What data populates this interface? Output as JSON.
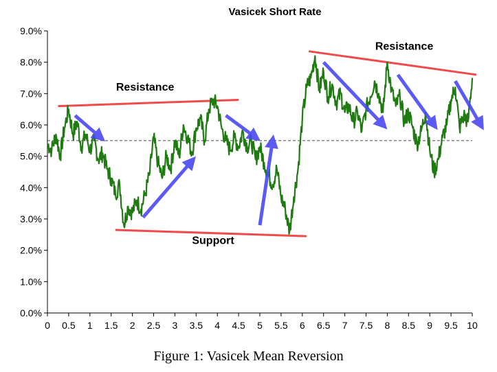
{
  "caption": "Figure 1: Vasicek Mean Reversion",
  "chart_data": {
    "type": "line",
    "title": "Vasicek Short Rate",
    "xlabel": "",
    "ylabel": "",
    "xlim": [
      0,
      10
    ],
    "ylim": [
      0.0,
      9.0
    ],
    "x_ticks": [
      "0",
      "0.5",
      "1",
      "1.5",
      "2",
      "2.5",
      "3",
      "3.5",
      "4",
      "4.5",
      "5",
      "5.5",
      "6",
      "6.5",
      "7",
      "7.5",
      "8",
      "8.5",
      "9",
      "9.5",
      "10"
    ],
    "y_ticks": [
      "0.0%",
      "1.0%",
      "2.0%",
      "3.0%",
      "4.0%",
      "5.0%",
      "6.0%",
      "7.0%",
      "8.0%",
      "9.0%"
    ],
    "grid": false,
    "colors": {
      "series": "#1f7a12",
      "support_resistance": "#ef4b4b",
      "arrows": "#4a4af2",
      "mean_line": "#444444"
    },
    "series": [
      {
        "x": [
          0,
          0.1,
          0.2,
          0.3,
          0.4,
          0.5,
          0.6,
          0.7,
          0.8,
          0.9,
          1.0,
          1.1,
          1.2,
          1.3,
          1.4,
          1.5,
          1.6,
          1.7,
          1.8,
          1.9,
          2.0,
          2.1,
          2.2,
          2.3,
          2.4,
          2.5,
          2.6,
          2.7,
          2.8,
          2.9,
          3.0,
          3.1,
          3.2,
          3.3,
          3.4,
          3.5,
          3.6,
          3.7,
          3.8,
          3.9,
          4.0,
          4.1,
          4.2,
          4.3,
          4.4,
          4.5,
          4.6,
          4.7,
          4.8,
          4.9,
          5.0,
          5.1,
          5.2,
          5.3,
          5.4,
          5.5,
          5.6,
          5.7,
          5.8,
          5.9,
          6.0,
          6.1,
          6.2,
          6.3,
          6.4,
          6.5,
          6.6,
          6.7,
          6.8,
          6.9,
          7.0,
          7.1,
          7.2,
          7.3,
          7.4,
          7.5,
          7.6,
          7.7,
          7.8,
          7.9,
          8.0,
          8.1,
          8.2,
          8.3,
          8.4,
          8.5,
          8.6,
          8.7,
          8.8,
          8.9,
          9.0,
          9.1,
          9.2,
          9.3,
          9.4,
          9.5,
          9.6,
          9.7,
          9.8,
          9.9,
          10.0
        ],
        "values": [
          5.4,
          5.2,
          5.7,
          5.0,
          5.9,
          6.5,
          5.7,
          6.1,
          5.3,
          5.7,
          5.2,
          5.5,
          4.9,
          5.1,
          4.6,
          4.3,
          3.8,
          4.1,
          2.8,
          3.4,
          3.2,
          3.6,
          3.3,
          3.8,
          4.4,
          5.6,
          4.8,
          4.3,
          5.0,
          4.6,
          5.5,
          5.0,
          6.0,
          5.6,
          5.1,
          5.9,
          6.2,
          5.5,
          6.5,
          6.8,
          6.6,
          5.9,
          5.5,
          5.2,
          5.6,
          5.3,
          5.8,
          5.3,
          5.5,
          4.9,
          5.3,
          4.8,
          4.4,
          4.1,
          4.6,
          3.7,
          3.3,
          2.6,
          3.7,
          4.6,
          6.2,
          7.2,
          7.5,
          8.2,
          7.1,
          7.7,
          6.9,
          7.3,
          6.7,
          7.0,
          6.4,
          6.6,
          6.1,
          6.4,
          5.8,
          6.5,
          6.9,
          7.4,
          7.0,
          6.4,
          8.0,
          7.1,
          6.6,
          6.9,
          6.1,
          6.4,
          5.9,
          5.4,
          5.8,
          6.4,
          5.2,
          4.5,
          4.9,
          5.6,
          6.0,
          6.8,
          7.2,
          5.9,
          6.3,
          6.1,
          7.5
        ]
      }
    ],
    "mean_level": 5.5,
    "annotations": [
      {
        "text": "Resistance",
        "x": 2.3,
        "y": 7.1
      },
      {
        "text": "Resistance",
        "x": 8.4,
        "y": 8.4
      },
      {
        "text": "Support",
        "x": 3.9,
        "y": 2.2
      }
    ],
    "trend_lines": [
      {
        "kind": "resistance",
        "x": [
          0.25,
          4.5
        ],
        "y": [
          6.6,
          6.8
        ]
      },
      {
        "kind": "resistance",
        "x": [
          6.15,
          10.1
        ],
        "y": [
          8.35,
          7.6
        ]
      },
      {
        "kind": "support",
        "x": [
          1.6,
          6.1
        ],
        "y": [
          2.65,
          2.45
        ]
      }
    ],
    "arrows": [
      {
        "x": [
          0.65,
          1.25
        ],
        "y": [
          6.3,
          5.6
        ]
      },
      {
        "x": [
          2.25,
          3.4
        ],
        "y": [
          3.05,
          4.85
        ]
      },
      {
        "x": [
          4.2,
          4.9
        ],
        "y": [
          6.3,
          5.6
        ]
      },
      {
        "x": [
          5.0,
          5.3
        ],
        "y": [
          2.8,
          5.5
        ]
      },
      {
        "x": [
          6.5,
          7.9
        ],
        "y": [
          8.0,
          6.0
        ]
      },
      {
        "x": [
          8.25,
          9.1
        ],
        "y": [
          7.6,
          6.0
        ]
      },
      {
        "x": [
          9.6,
          10.2
        ],
        "y": [
          7.4,
          6.0
        ]
      }
    ]
  }
}
